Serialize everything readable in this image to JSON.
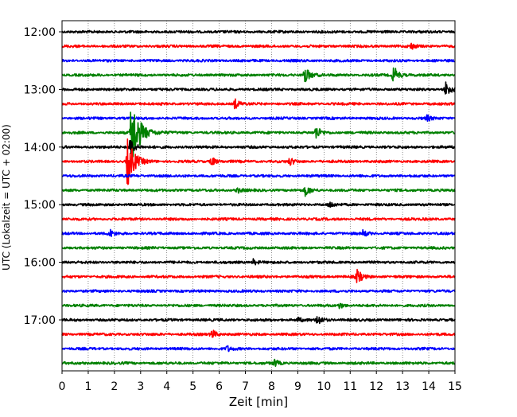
{
  "chart_data": {
    "type": "line",
    "subtype": "helicorder",
    "title": "",
    "xlabel": "Zeit  [min]",
    "ylabel": "UTC (Lokalzeit = UTC + 02:00)",
    "xlim": [
      0,
      15
    ],
    "x_ticks": [
      "0",
      "1",
      "2",
      "3",
      "4",
      "5",
      "6",
      "7",
      "8",
      "9",
      "10",
      "11",
      "12",
      "13",
      "14",
      "15"
    ],
    "trace_interval_min": 15,
    "start_time": "12:00",
    "y_ticks": [
      "12:00",
      "13:00",
      "14:00",
      "15:00",
      "16:00",
      "17:00"
    ],
    "grid": {
      "vertical_dotted": true
    },
    "color_cycle": [
      "#000000",
      "#ff0000",
      "#0000ff",
      "#008000"
    ],
    "traces": [
      {
        "start": "12:00",
        "color": "#000000",
        "events": []
      },
      {
        "start": "12:15",
        "color": "#ff0000",
        "events": [
          {
            "x": 13.3,
            "amp": 0.3
          }
        ]
      },
      {
        "start": "12:30",
        "color": "#0000ff",
        "events": []
      },
      {
        "start": "12:45",
        "color": "#008000",
        "events": [
          {
            "x": 9.25,
            "amp": 0.9
          },
          {
            "x": 12.65,
            "amp": 0.85
          }
        ]
      },
      {
        "start": "13:00",
        "color": "#000000",
        "events": [
          {
            "x": 14.65,
            "amp": 0.7
          }
        ]
      },
      {
        "start": "13:15",
        "color": "#ff0000",
        "events": [
          {
            "x": 6.6,
            "amp": 0.45
          }
        ]
      },
      {
        "start": "13:30",
        "color": "#0000ff",
        "events": [
          {
            "x": 13.9,
            "amp": 0.3
          }
        ]
      },
      {
        "start": "13:45",
        "color": "#008000",
        "events": [
          {
            "x": 2.65,
            "amp": 3.2
          },
          {
            "x": 9.7,
            "amp": 0.6
          }
        ]
      },
      {
        "start": "14:00",
        "color": "#000000",
        "events": [
          {
            "x": 2.6,
            "amp": 0.8
          }
        ]
      },
      {
        "start": "14:15",
        "color": "#ff0000",
        "events": [
          {
            "x": 2.5,
            "amp": 2.2
          },
          {
            "x": 5.7,
            "amp": 0.45
          },
          {
            "x": 8.7,
            "amp": 0.35
          }
        ]
      },
      {
        "start": "14:30",
        "color": "#0000ff",
        "events": []
      },
      {
        "start": "14:45",
        "color": "#008000",
        "events": [
          {
            "x": 9.3,
            "amp": 0.5
          },
          {
            "x": 6.7,
            "amp": 0.25
          }
        ]
      },
      {
        "start": "15:00",
        "color": "#000000",
        "events": [
          {
            "x": 10.2,
            "amp": 0.3
          }
        ]
      },
      {
        "start": "15:15",
        "color": "#ff0000",
        "events": []
      },
      {
        "start": "15:30",
        "color": "#0000ff",
        "events": [
          {
            "x": 1.8,
            "amp": 0.4
          },
          {
            "x": 11.5,
            "amp": 0.3
          }
        ]
      },
      {
        "start": "15:45",
        "color": "#008000",
        "events": []
      },
      {
        "start": "16:00",
        "color": "#000000",
        "events": [
          {
            "x": 7.3,
            "amp": 0.25
          }
        ]
      },
      {
        "start": "16:15",
        "color": "#ff0000",
        "events": [
          {
            "x": 11.25,
            "amp": 0.7
          }
        ]
      },
      {
        "start": "16:30",
        "color": "#0000ff",
        "events": []
      },
      {
        "start": "16:45",
        "color": "#008000",
        "events": [
          {
            "x": 10.6,
            "amp": 0.25
          }
        ]
      },
      {
        "start": "17:00",
        "color": "#000000",
        "events": [
          {
            "x": 9.75,
            "amp": 0.5
          },
          {
            "x": 9.0,
            "amp": 0.2
          }
        ]
      },
      {
        "start": "17:15",
        "color": "#ff0000",
        "events": [
          {
            "x": 5.7,
            "amp": 0.5
          }
        ]
      },
      {
        "start": "17:30",
        "color": "#0000ff",
        "events": [
          {
            "x": 6.3,
            "amp": 0.25
          }
        ]
      },
      {
        "start": "17:45",
        "color": "#008000",
        "events": [
          {
            "x": 8.1,
            "amp": 0.35
          }
        ]
      }
    ]
  }
}
